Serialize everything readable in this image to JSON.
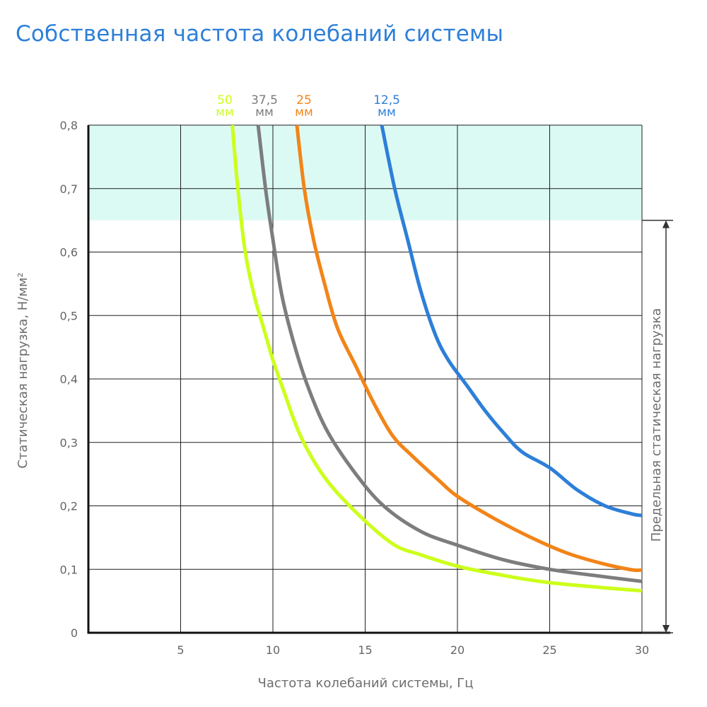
{
  "chart_data": {
    "type": "line",
    "title": "Собственная частота колебаний системы",
    "xlabel": "Частота колебаний системы, Гц",
    "ylabel": "Статическая нагрузка, Н/мм²",
    "xlim": [
      0,
      30
    ],
    "ylim": [
      0,
      0.8
    ],
    "x_ticks": [
      "5",
      "10",
      "15",
      "20",
      "25",
      "30"
    ],
    "y_ticks": [
      "0",
      "0,1",
      "0,2",
      "0,3",
      "0,4",
      "0,5",
      "0,6",
      "0,7",
      "0,8"
    ],
    "grid": true,
    "limit_band": {
      "label": "Предельная статическая нагрузка",
      "from": 0,
      "to": 0.65,
      "highlight": [
        0.65,
        0.8
      ],
      "highlight_color": "#dcfaf4"
    },
    "series": [
      {
        "name": "50",
        "unit": "мм",
        "color": "#ccff1a",
        "x": [
          7.8,
          8.1,
          8.5,
          9.0,
          9.5,
          10.0,
          10.6,
          11.5,
          12.8,
          14.5,
          16.5,
          18.0,
          20.0,
          22.0,
          25.0,
          30.0
        ],
        "y": [
          0.8,
          0.7,
          0.6,
          0.53,
          0.48,
          0.43,
          0.38,
          0.31,
          0.245,
          0.19,
          0.14,
          0.123,
          0.105,
          0.093,
          0.079,
          0.066
        ]
      },
      {
        "name": "37,5",
        "unit": "мм",
        "color": "#7d7d7d",
        "x": [
          9.2,
          9.6,
          10.0,
          10.5,
          11.2,
          12.0,
          13.0,
          14.5,
          16.0,
          18.0,
          20.0,
          22.5,
          25.0,
          27.5,
          30.0
        ],
        "y": [
          0.8,
          0.7,
          0.62,
          0.53,
          0.45,
          0.38,
          0.315,
          0.25,
          0.2,
          0.16,
          0.138,
          0.115,
          0.1,
          0.09,
          0.081
        ]
      },
      {
        "name": "25",
        "unit": "мм",
        "color": "#f28418",
        "x": [
          11.3,
          11.7,
          12.2,
          12.8,
          13.5,
          14.5,
          15.5,
          16.5,
          17.5,
          19.0,
          20.0,
          22.0,
          24.0,
          26.0,
          28.0,
          29.5,
          30.0
        ],
        "y": [
          0.8,
          0.7,
          0.62,
          0.55,
          0.48,
          0.42,
          0.36,
          0.31,
          0.28,
          0.24,
          0.215,
          0.18,
          0.15,
          0.125,
          0.108,
          0.099,
          0.099
        ]
      },
      {
        "name": "12,5",
        "unit": "мм",
        "color": "#2d7fd8",
        "x": [
          15.9,
          16.6,
          17.3,
          18.0,
          18.8,
          19.5,
          20.5,
          21.5,
          22.5,
          23.5,
          25.0,
          26.5,
          28.0,
          29.5,
          30.0
        ],
        "y": [
          0.8,
          0.7,
          0.62,
          0.54,
          0.47,
          0.43,
          0.39,
          0.35,
          0.315,
          0.285,
          0.26,
          0.225,
          0.2,
          0.187,
          0.185
        ]
      }
    ]
  }
}
